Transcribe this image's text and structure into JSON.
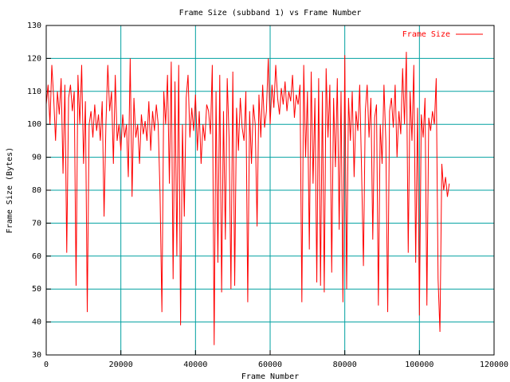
{
  "chart_data": {
    "type": "line",
    "title": "Frame Size (subband 1) vs Frame Number",
    "xlabel": "Frame Number",
    "ylabel": "Frame Size (Bytes)",
    "xlim": [
      0,
      120000
    ],
    "xticks": [
      0,
      20000,
      40000,
      60000,
      80000,
      100000,
      120000
    ],
    "ylim": [
      30,
      130
    ],
    "yticks": [
      30,
      40,
      50,
      60,
      70,
      80,
      90,
      100,
      110,
      120,
      130
    ],
    "grid": true,
    "legend": "upper right",
    "x": [
      0,
      500,
      1000,
      1500,
      2000,
      2500,
      3000,
      3500,
      4000,
      4500,
      5000,
      5500,
      6000,
      6500,
      7000,
      7500,
      8000,
      8500,
      9000,
      9500,
      10000,
      10500,
      11000,
      11500,
      12000,
      12500,
      13000,
      13500,
      14000,
      14500,
      15000,
      15500,
      16000,
      16500,
      17000,
      17500,
      18000,
      18500,
      19000,
      19500,
      20000,
      20500,
      21000,
      21500,
      22000,
      22500,
      23000,
      23500,
      24000,
      24500,
      25000,
      25500,
      26000,
      26500,
      27000,
      27500,
      28000,
      28500,
      29000,
      29500,
      30000,
      30500,
      31000,
      31500,
      32000,
      32500,
      33000,
      33500,
      34000,
      34500,
      35000,
      35500,
      36000,
      36500,
      37000,
      37500,
      38000,
      38500,
      39000,
      39500,
      40000,
      40500,
      41000,
      41500,
      42000,
      42500,
      43000,
      43500,
      44000,
      44500,
      45000,
      45500,
      46000,
      46500,
      47000,
      47500,
      48000,
      48500,
      49000,
      49500,
      50000,
      50500,
      51000,
      51500,
      52000,
      52500,
      53000,
      53500,
      54000,
      54500,
      55000,
      55500,
      56000,
      56500,
      57000,
      57500,
      58000,
      58500,
      59000,
      59500,
      60000,
      60500,
      61000,
      61500,
      62000,
      62500,
      63000,
      63500,
      64000,
      64500,
      65000,
      65500,
      66000,
      66500,
      67000,
      67500,
      68000,
      68500,
      69000,
      69500,
      70000,
      70500,
      71000,
      71500,
      72000,
      72500,
      73000,
      73500,
      74000,
      74500,
      75000,
      75500,
      76000,
      76500,
      77000,
      77500,
      78000,
      78500,
      79000,
      79500,
      80000,
      80500,
      81000,
      81500,
      82000,
      82500,
      83000,
      83500,
      84000,
      84500,
      85000,
      85500,
      86000,
      86500,
      87000,
      87500,
      88000,
      88500,
      89000,
      89500,
      90000,
      90500,
      91000,
      91500,
      92000,
      92500,
      93000,
      93500,
      94000,
      94500,
      95000,
      95500,
      96000,
      96500,
      97000,
      97500,
      98000,
      98500,
      99000,
      99500,
      100000,
      100500,
      101000,
      101500,
      102000,
      102500,
      103000,
      103500,
      104000,
      104500,
      105000,
      105500,
      106000,
      106500,
      107000,
      107500,
      108000
    ],
    "series": [
      {
        "name": "Frame Size",
        "color": "#ff0000",
        "values": [
          106,
          112,
          100,
          118,
          108,
          95,
          110,
          103,
          114,
          85,
          112,
          61,
          108,
          112,
          104,
          110,
          51,
          115,
          100,
          118,
          88,
          107,
          43,
          100,
          104,
          96,
          106,
          98,
          103,
          95,
          107,
          72,
          100,
          118,
          104,
          110,
          88,
          115,
          95,
          100,
          92,
          103,
          96,
          100,
          84,
          120,
          78,
          108,
          96,
          100,
          88,
          103,
          97,
          101,
          95,
          107,
          92,
          104,
          98,
          106,
          100,
          79,
          43,
          110,
          100,
          115,
          82,
          119,
          53,
          113,
          60,
          118,
          39,
          100,
          72,
          108,
          115,
          96,
          105,
          98,
          109,
          92,
          104,
          88,
          100,
          95,
          106,
          104,
          97,
          118,
          33,
          110,
          58,
          115,
          49,
          104,
          65,
          114,
          96,
          50,
          116,
          51,
          105,
          92,
          108,
          99,
          95,
          110,
          46,
          104,
          88,
          106,
          100,
          69,
          109,
          96,
          112,
          99,
          104,
          120,
          100,
          112,
          105,
          118,
          108,
          103,
          111,
          106,
          113,
          104,
          110,
          107,
          115,
          102,
          109,
          106,
          112,
          46,
          118,
          90,
          110,
          62,
          116,
          82,
          108,
          52,
          114,
          51,
          110,
          49,
          117,
          96,
          112,
          55,
          108,
          87,
          114,
          68,
          110,
          46,
          121,
          50,
          108,
          95,
          110,
          84,
          104,
          98,
          112,
          86,
          57,
          104,
          112,
          96,
          108,
          65,
          102,
          106,
          45,
          100,
          88,
          112,
          95,
          43,
          104,
          108,
          99,
          112,
          90,
          104,
          97,
          117,
          100,
          122,
          61,
          110,
          95,
          118,
          58,
          105,
          42,
          103,
          96,
          108,
          45,
          102,
          98,
          104,
          100,
          114,
          53,
          37,
          88,
          80,
          84,
          78,
          82
        ]
      }
    ]
  }
}
